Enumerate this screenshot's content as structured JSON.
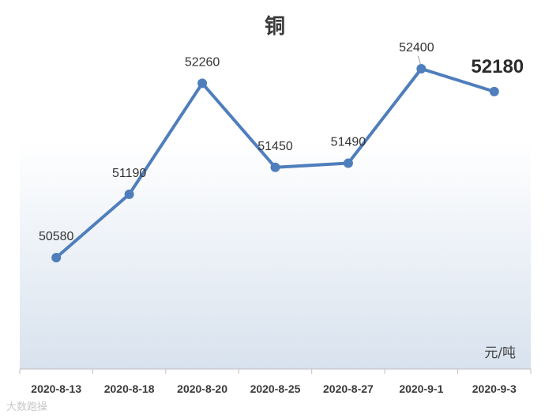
{
  "chart_data": {
    "type": "line",
    "title": "铜",
    "unit_label": "元/吨",
    "categories": [
      "2020-8-13",
      "2020-8-18",
      "2020-8-20",
      "2020-8-25",
      "2020-8-27",
      "2020-9-1",
      "2020-9-3"
    ],
    "series": [
      {
        "values": [
          50580,
          51190,
          52260,
          51450,
          51490,
          52400,
          52180
        ],
        "color": "#4f7ebc"
      }
    ],
    "highlight_last_label": true,
    "ylim": [
      49500,
      52700
    ],
    "grid": false,
    "legend": "none"
  },
  "colors": {
    "line": "#4f7ebc",
    "gradient_top": "#ffffff",
    "gradient_bottom": "#d8e2ee",
    "axis": "#bfbfbf"
  },
  "watermark": "大数跑操"
}
